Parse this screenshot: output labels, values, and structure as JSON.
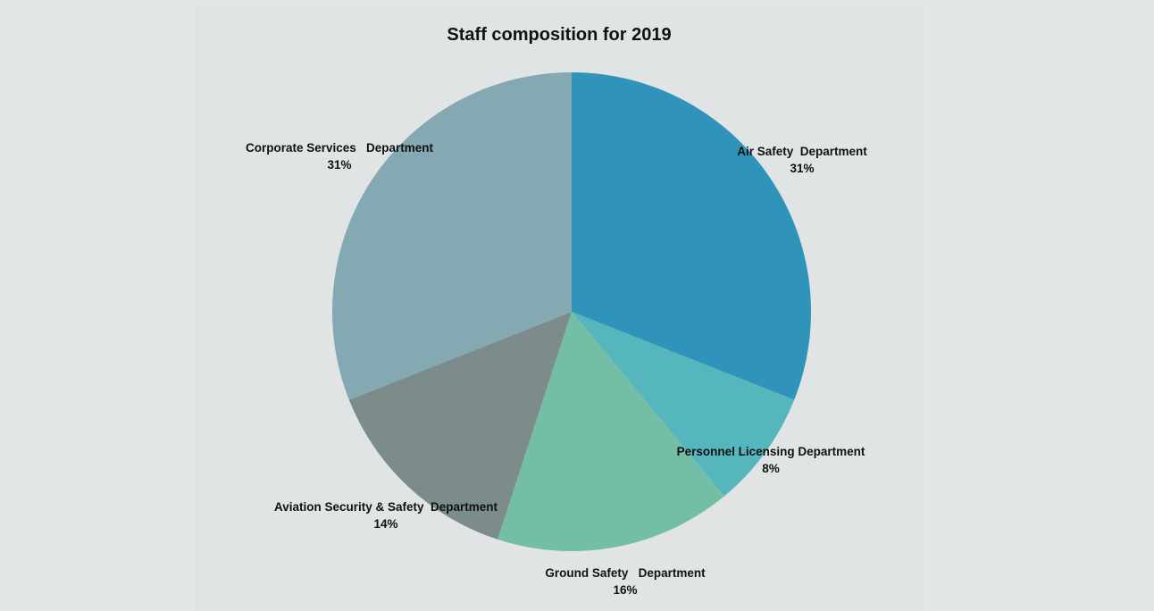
{
  "chart_data": {
    "type": "pie",
    "title": "Staff composition for 2019",
    "slices": [
      {
        "label": "Air Safety  Department",
        "value": 31,
        "value_label": "31%",
        "color": "#3093b9"
      },
      {
        "label": "Personnel Licensing Department",
        "value": 8,
        "value_label": "8%",
        "color": "#56b6bd"
      },
      {
        "label": "Ground Safety   Department",
        "value": 16,
        "value_label": "16%",
        "color": "#75bea6"
      },
      {
        "label": "Aviation Security & Safety  Department",
        "value": 14,
        "value_label": "14%",
        "color": "#7b8c8a"
      },
      {
        "label": "Corporate Services   Department",
        "value": 31,
        "value_label": "31%",
        "color": "#84a9b2"
      }
    ]
  }
}
